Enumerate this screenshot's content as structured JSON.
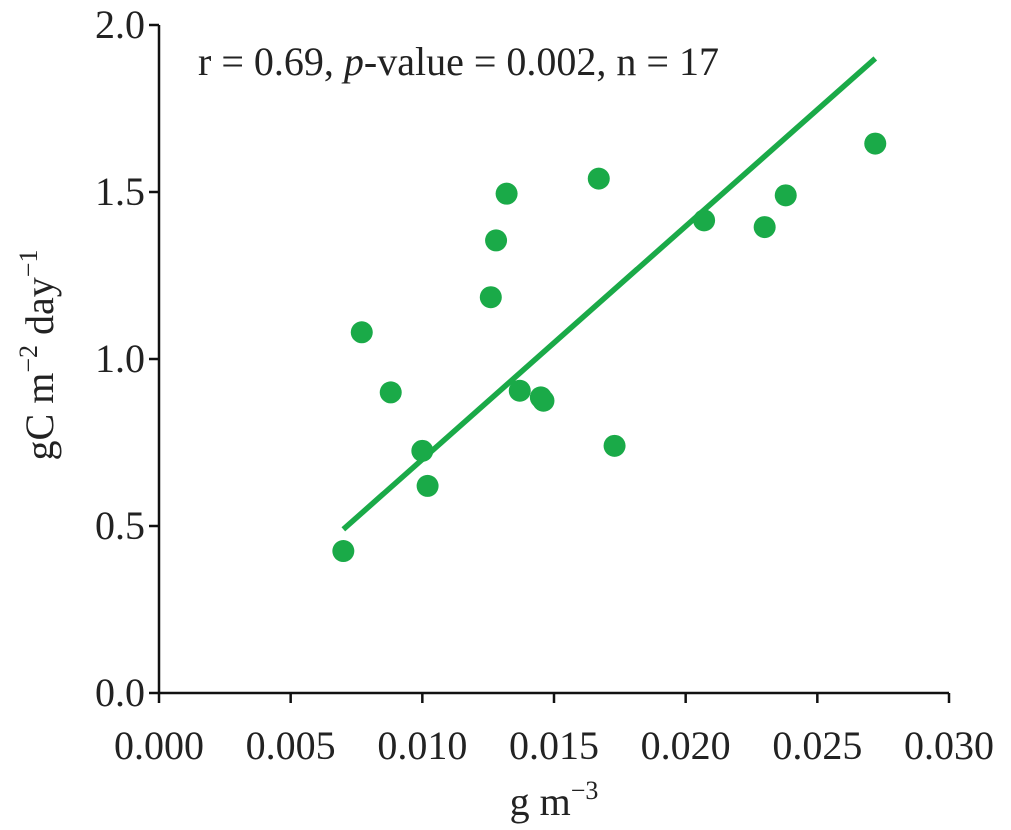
{
  "chart_data": {
    "type": "scatter",
    "annotation": {
      "prefix": "r = 0.69, ",
      "p_symbol": "p",
      "suffix": "-value = 0.002, n = 17"
    },
    "xlabel": {
      "base": "g m",
      "sup": "−3"
    },
    "ylabel": {
      "base1": "gC m",
      "sup1": "−2",
      "base2": " day",
      "sup2": "−1"
    },
    "xlim": [
      0,
      0.03
    ],
    "ylim": [
      0,
      2.0
    ],
    "x_ticks": [
      "0.000",
      "0.005",
      "0.010",
      "0.015",
      "0.020",
      "0.025",
      "0.030"
    ],
    "y_ticks": [
      "0.0",
      "0.5",
      "1.0",
      "1.5",
      "2.0"
    ],
    "grid": false,
    "color": "#1aaa48",
    "points": [
      {
        "x": 0.007,
        "y": 0.425
      },
      {
        "x": 0.0077,
        "y": 1.08
      },
      {
        "x": 0.0088,
        "y": 0.9
      },
      {
        "x": 0.01,
        "y": 0.725
      },
      {
        "x": 0.0102,
        "y": 0.62
      },
      {
        "x": 0.0126,
        "y": 1.185
      },
      {
        "x": 0.0128,
        "y": 1.355
      },
      {
        "x": 0.0132,
        "y": 1.495
      },
      {
        "x": 0.0137,
        "y": 0.905
      },
      {
        "x": 0.0145,
        "y": 0.885
      },
      {
        "x": 0.0146,
        "y": 0.875
      },
      {
        "x": 0.0167,
        "y": 1.54
      },
      {
        "x": 0.0173,
        "y": 0.74
      },
      {
        "x": 0.0207,
        "y": 1.415
      },
      {
        "x": 0.023,
        "y": 1.395
      },
      {
        "x": 0.0238,
        "y": 1.49
      },
      {
        "x": 0.0272,
        "y": 1.645
      }
    ],
    "trendline": {
      "x": [
        0.007,
        0.0272
      ],
      "y": [
        0.49,
        1.9
      ]
    }
  }
}
